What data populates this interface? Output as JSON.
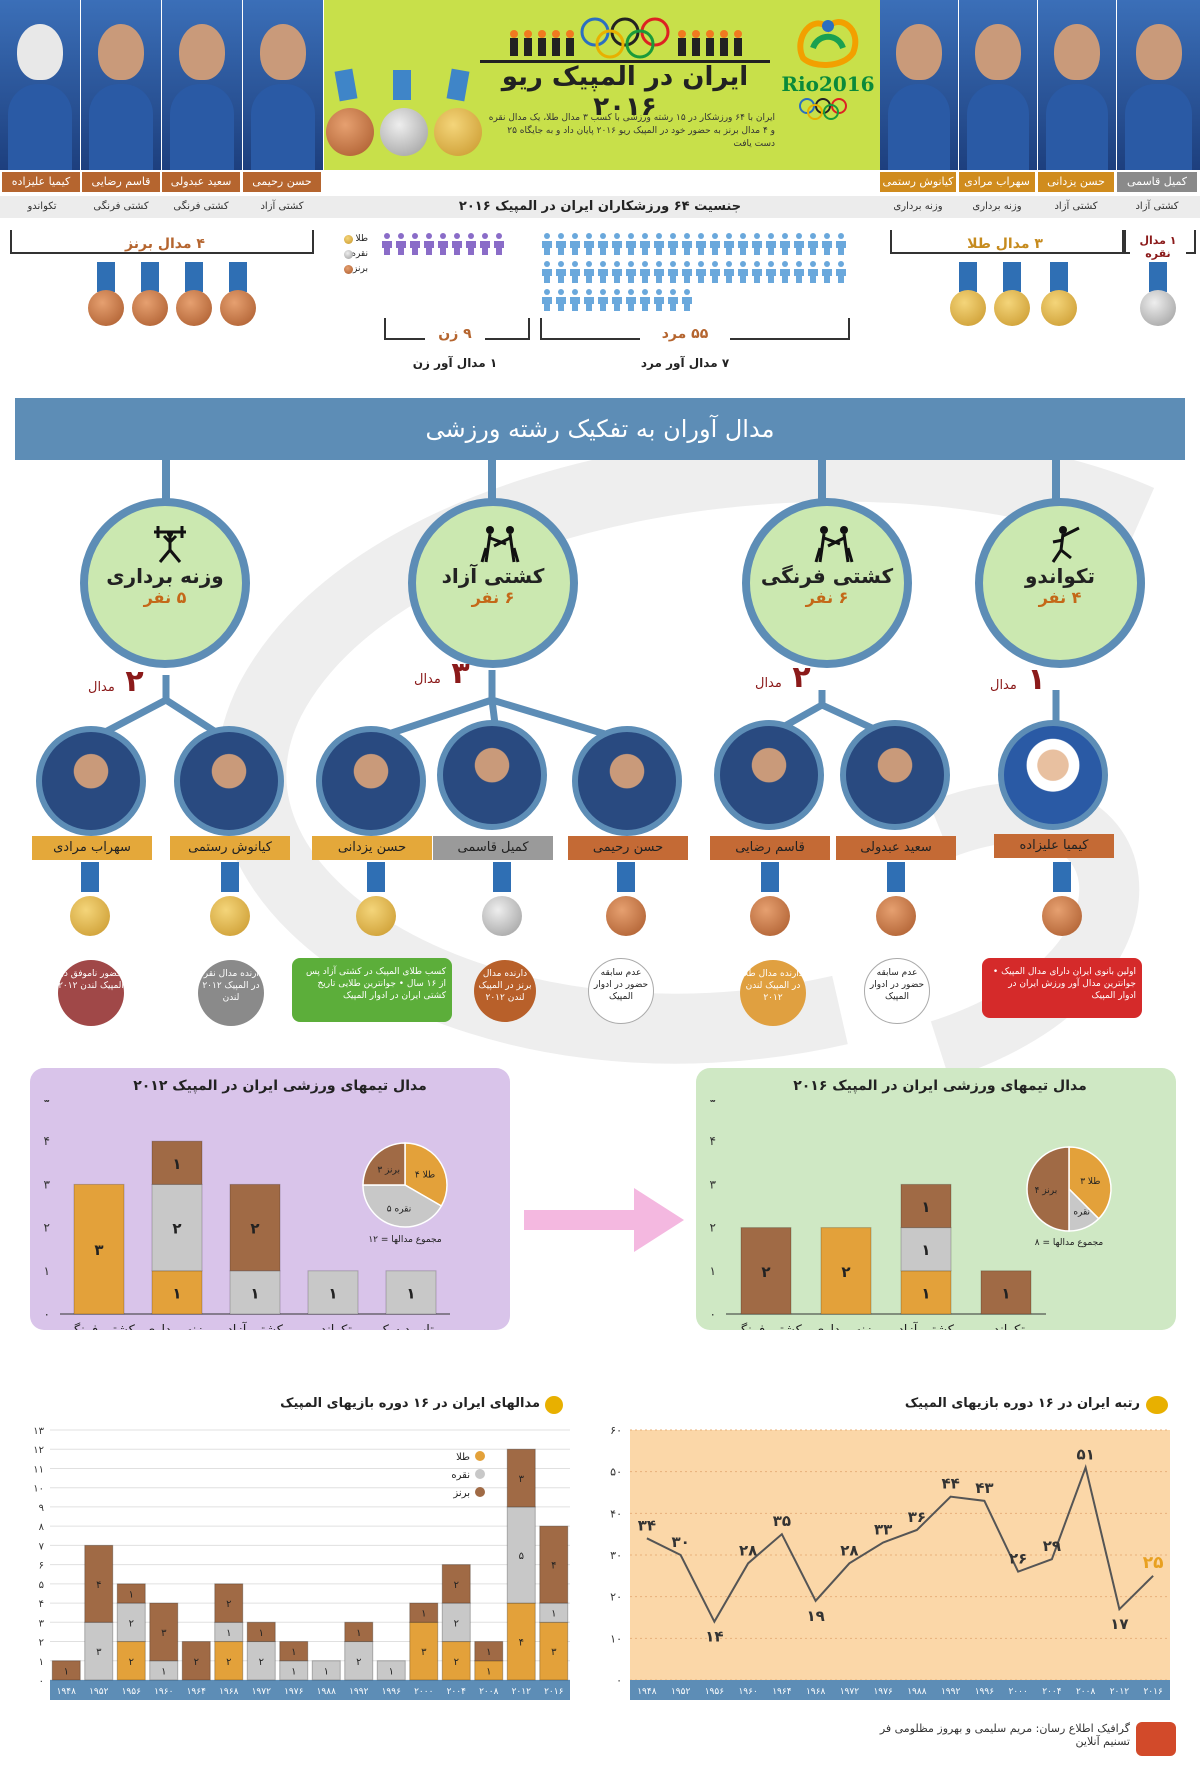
{
  "header": {
    "title": "ایران در المپیک ریو ۲۰۱۶",
    "rio_logo": "Rio2016",
    "intro": "ایران با ۶۴ ورزشکار در ۱۵ رشته ورزشی با کسب ۳ مدال طلا، یک مدال نقره و ۴ مدال برنز به حضور خود در المپیک ریو ۲۰۱۶ پایان داد و به جایگاه ۲۵ دست یافت",
    "right_athletes": [
      {
        "name": "کیانوش رستمی",
        "sport": "وزنه برداری"
      },
      {
        "name": "سهراب مرادی",
        "sport": "وزنه برداری"
      },
      {
        "name": "حسن یزدانی",
        "sport": "کشتی آزاد"
      },
      {
        "name": "کمیل قاسمی",
        "sport": "کشتی آزاد"
      }
    ],
    "left_athletes": [
      {
        "name": "کیمیا علیزاده",
        "sport": "تکواندو"
      },
      {
        "name": "قاسم رضایی",
        "sport": "کشتی فرنگی"
      },
      {
        "name": "سعید عبدولی",
        "sport": "کشتی فرنگی"
      },
      {
        "name": "حسن رحیمی",
        "sport": "کشتی آزاد"
      }
    ]
  },
  "gender": {
    "title": "جنسیت ۶۴ ورزشکاران ایران در المپیک ۲۰۱۶",
    "legend": [
      "طلا",
      "نقره",
      "برنز"
    ],
    "women_label": "۹ زن",
    "women_medals": "۱ مدال آور زن",
    "men_label": "۵۵ مرد",
    "men_medals": "۷ مدال آور مرد",
    "bronze_label": "۴ مدال برنز",
    "gold_label": "۳ مدال طلا",
    "silver_label": "۱ مدال نقره"
  },
  "breakdown": {
    "banner": "مدال آوران به تفکیک رشته ورزشی",
    "sports": [
      {
        "name": "وزنه برداری",
        "count": "۵ نفر",
        "medals": "۲",
        "medal_word": "مدال"
      },
      {
        "name": "کشتی آزاد",
        "count": "۶ نفر",
        "medals": "۳",
        "medal_word": "مدال"
      },
      {
        "name": "کشتی فرنگی",
        "count": "۶ نفر",
        "medals": "۲",
        "medal_word": "مدال"
      },
      {
        "name": "تکواندو",
        "count": "۴ نفر",
        "medals": "۱",
        "medal_word": "مدال"
      }
    ],
    "athletes": [
      {
        "name": "سهراب مرادی",
        "medal": "gold",
        "note": "حضور ناموفق در المپیک لندن ۲۰۱۲",
        "note_color": "#a04848"
      },
      {
        "name": "کیانوش رستمی",
        "medal": "gold",
        "note": "دارنده مدال نقره در المپیک ۲۰۱۲ لندن",
        "note_color": "#8a8a8a"
      },
      {
        "name": "حسن یزدانی",
        "medal": "gold",
        "note": "کسب طلای المپیک در کشتی آزاد پس از ۱۶ سال • جوانترین طلایی تاریخ کشتی ایران در ادوار المپیک",
        "note_color": "#5cae3a"
      },
      {
        "name": "کمیل قاسمی",
        "medal": "silver",
        "note": "دارنده مدال برنز در المپیک لندن ۲۰۱۲",
        "note_color": "#b8602a"
      },
      {
        "name": "حسن رحیمی",
        "medal": "bronze",
        "note": "عدم سابقه حضور در ادوار المپیک",
        "note_color": "#ffffff"
      },
      {
        "name": "قاسم رضایی",
        "medal": "bronze",
        "note": "دارنده مدال طلا در المپیک لندن ۲۰۱۲",
        "note_color": "#e0a040"
      },
      {
        "name": "سعید عبدولی",
        "medal": "bronze",
        "note": "عدم سابقه حضور در ادوار المپیک",
        "note_color": "#ffffff"
      },
      {
        "name": "کیمیا علیزاده",
        "medal": "bronze",
        "note": "اولین بانوی ایران دارای مدال المپیک • جوانترین مدال آور ورزش ایران در ادوار المپیک",
        "note_color": "#d52a2a"
      }
    ]
  },
  "colors": {
    "gold": "#e3a13a",
    "silver": "#c8c8c8",
    "bronze": "#a06a45",
    "banner": "#5d8db6",
    "panel2012": "#d9c4ea",
    "panel2016": "#cfe8c4",
    "line": "#555555",
    "line_bg": "#fbd7a8"
  },
  "panel2012": {
    "title": "مدال تیمهای ورزشی ایران در المپیک ۲۰۱۲",
    "total_label": "مجموع مدالها = ۱۲",
    "pie": [
      {
        "label": "۴ طلا",
        "value": 4
      },
      {
        "label": "۵ نقره",
        "value": 5
      },
      {
        "label": "۳ برنز",
        "value": 3
      }
    ]
  },
  "panel2016": {
    "title": "مدال تیمهای ورزشی ایران در المپیک ۲۰۱۶",
    "total_label": "مجموع مدالها = ۸",
    "pie": [
      {
        "label": "۳ طلا",
        "value": 3
      },
      {
        "label": "۱ نقره",
        "value": 1
      },
      {
        "label": "۴ برنز",
        "value": 4
      }
    ]
  },
  "history": {
    "title": "مدالهای ایران در ۱۶ دوره بازیهای المپیک",
    "legend": [
      "طلا",
      "نقره",
      "برنز"
    ]
  },
  "rank": {
    "title": "رتبه ایران در ۱۶ دوره بازیهای المپیک"
  },
  "credit": {
    "line1": "گرافیک اطلاع رسان: مریم سلیمی و بهروز مظلومی فر",
    "line2": "تسنیم آنلاین"
  },
  "chart_data": [
    {
      "type": "bar",
      "title": "مدال تیمهای ورزشی ایران در المپیک ۲۰۱۲",
      "categories": [
        "کشتی فرنگی",
        "وزنه برداری",
        "کشتی آزاد",
        "تکواندو",
        "پرتاب دیسک"
      ],
      "series": [
        {
          "name": "طلا",
          "values": [
            3,
            1,
            0,
            0,
            0
          ]
        },
        {
          "name": "نقره",
          "values": [
            0,
            2,
            1,
            1,
            1
          ]
        },
        {
          "name": "برنز",
          "values": [
            0,
            1,
            2,
            0,
            0
          ]
        }
      ],
      "ylim": [
        0,
        5
      ],
      "yticks": [
        "۰",
        "۱",
        "۲",
        "۳",
        "۴",
        "۵"
      ]
    },
    {
      "type": "bar",
      "title": "مدال تیمهای ورزشی ایران در المپیک ۲۰۱۶",
      "categories": [
        "کشتی فرنگی",
        "وزنه برداری",
        "کشتی آزاد",
        "تکواندو"
      ],
      "series": [
        {
          "name": "طلا",
          "values": [
            0,
            2,
            1,
            0
          ]
        },
        {
          "name": "نقره",
          "values": [
            0,
            0,
            1,
            0
          ]
        },
        {
          "name": "برنز",
          "values": [
            2,
            0,
            1,
            1
          ]
        }
      ],
      "ylim": [
        0,
        5
      ],
      "yticks": [
        "۰",
        "۱",
        "۲",
        "۳",
        "۴",
        "۵"
      ]
    },
    {
      "type": "bar",
      "title": "مدالهای ایران در ۱۶ دوره بازیهای المپیک",
      "categories": [
        "۱۹۴۸",
        "۱۹۵۲",
        "۱۹۵۶",
        "۱۹۶۰",
        "۱۹۶۴",
        "۱۹۶۸",
        "۱۹۷۲",
        "۱۹۷۶",
        "۱۹۸۸",
        "۱۹۹۲",
        "۱۹۹۶",
        "۲۰۰۰",
        "۲۰۰۴",
        "۲۰۰۸",
        "۲۰۱۲",
        "۲۰۱۶"
      ],
      "series": [
        {
          "name": "طلا",
          "values": [
            0,
            0,
            2,
            0,
            0,
            2,
            0,
            0,
            0,
            0,
            0,
            3,
            2,
            1,
            4,
            3
          ]
        },
        {
          "name": "نقره",
          "values": [
            0,
            3,
            2,
            1,
            0,
            1,
            2,
            1,
            1,
            2,
            1,
            0,
            2,
            0,
            5,
            1
          ]
        },
        {
          "name": "برنز",
          "values": [
            1,
            4,
            1,
            3,
            2,
            2,
            1,
            1,
            0,
            1,
            0,
            1,
            2,
            1,
            3,
            4
          ]
        }
      ],
      "ylim": [
        0,
        13
      ],
      "yticks": [
        "۰",
        "۱",
        "۲",
        "۳",
        "۴",
        "۵",
        "۶",
        "۷",
        "۸",
        "۹",
        "۱۰",
        "۱۱",
        "۱۲",
        "۱۳"
      ]
    },
    {
      "type": "line",
      "title": "رتبه ایران در ۱۶ دوره بازیهای المپیک",
      "x": [
        "۱۹۴۸",
        "۱۹۵۲",
        "۱۹۵۶",
        "۱۹۶۰",
        "۱۹۶۴",
        "۱۹۶۸",
        "۱۹۷۲",
        "۱۹۷۶",
        "۱۹۸۸",
        "۱۹۹۲",
        "۱۹۹۶",
        "۲۰۰۰",
        "۲۰۰۴",
        "۲۰۰۸",
        "۲۰۱۲",
        "۲۰۱۶"
      ],
      "values": [
        34,
        30,
        14,
        28,
        35,
        19,
        28,
        33,
        36,
        44,
        43,
        26,
        29,
        51,
        17,
        25
      ],
      "labels": [
        "۳۴",
        "۳۰",
        "۱۴",
        "۲۸",
        "۳۵",
        "۱۹",
        "۲۸",
        "۳۳",
        "۳۶",
        "۴۴",
        "۴۳",
        "۲۶",
        "۲۹",
        "۵۱",
        "۱۷",
        "۲۵"
      ],
      "ylim": [
        0,
        60
      ],
      "yticks": [
        "۰",
        "۱۰",
        "۲۰",
        "۳۰",
        "۴۰",
        "۵۰",
        "۶۰"
      ]
    }
  ]
}
